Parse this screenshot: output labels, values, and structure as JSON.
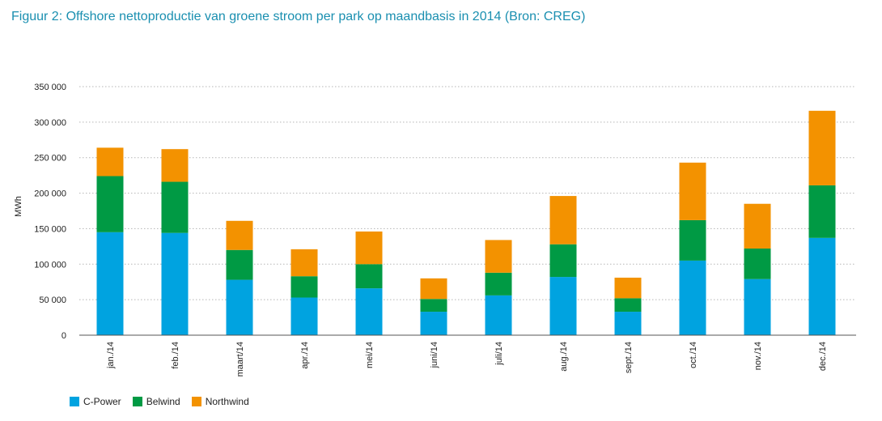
{
  "title": "Figuur 2: Offshore nettoproductie van groene stroom per park op maandbasis in 2014 (Bron: CREG)",
  "chart_data": {
    "type": "bar",
    "stacked": true,
    "title": "Figuur 2: Offshore nettoproductie van groene stroom per park op maandbasis in 2014 (Bron: CREG)",
    "xlabel": "",
    "ylabel": "MWh",
    "ylim": [
      0,
      350000
    ],
    "yticks": [
      0,
      50000,
      100000,
      150000,
      200000,
      250000,
      300000,
      350000
    ],
    "ytick_labels": [
      "0",
      "50 000",
      "100 000",
      "150 000",
      "200 000",
      "250 000",
      "300 000",
      "350 000"
    ],
    "grid": true,
    "legend_position": "bottom-left",
    "categories": [
      "jan./14",
      "feb./14",
      "maart/14",
      "apr./14",
      "mei/14",
      "juni/14",
      "juli/14",
      "aug./14",
      "sept./14",
      "oct./14",
      "nov./14",
      "dec./14"
    ],
    "series": [
      {
        "name": "C-Power",
        "color": "#00a3e0",
        "values": [
          145000,
          144000,
          78000,
          53000,
          66000,
          33000,
          56000,
          82000,
          33000,
          105000,
          79000,
          137000
        ]
      },
      {
        "name": "Belwind",
        "color": "#009a44",
        "values": [
          79000,
          72000,
          42000,
          30000,
          34000,
          18000,
          32000,
          46000,
          19000,
          57000,
          43000,
          74000
        ]
      },
      {
        "name": "Northwind",
        "color": "#f39200",
        "values": [
          40000,
          46000,
          41000,
          38000,
          46000,
          29000,
          46000,
          68000,
          29000,
          81000,
          63000,
          105000
        ]
      }
    ]
  }
}
